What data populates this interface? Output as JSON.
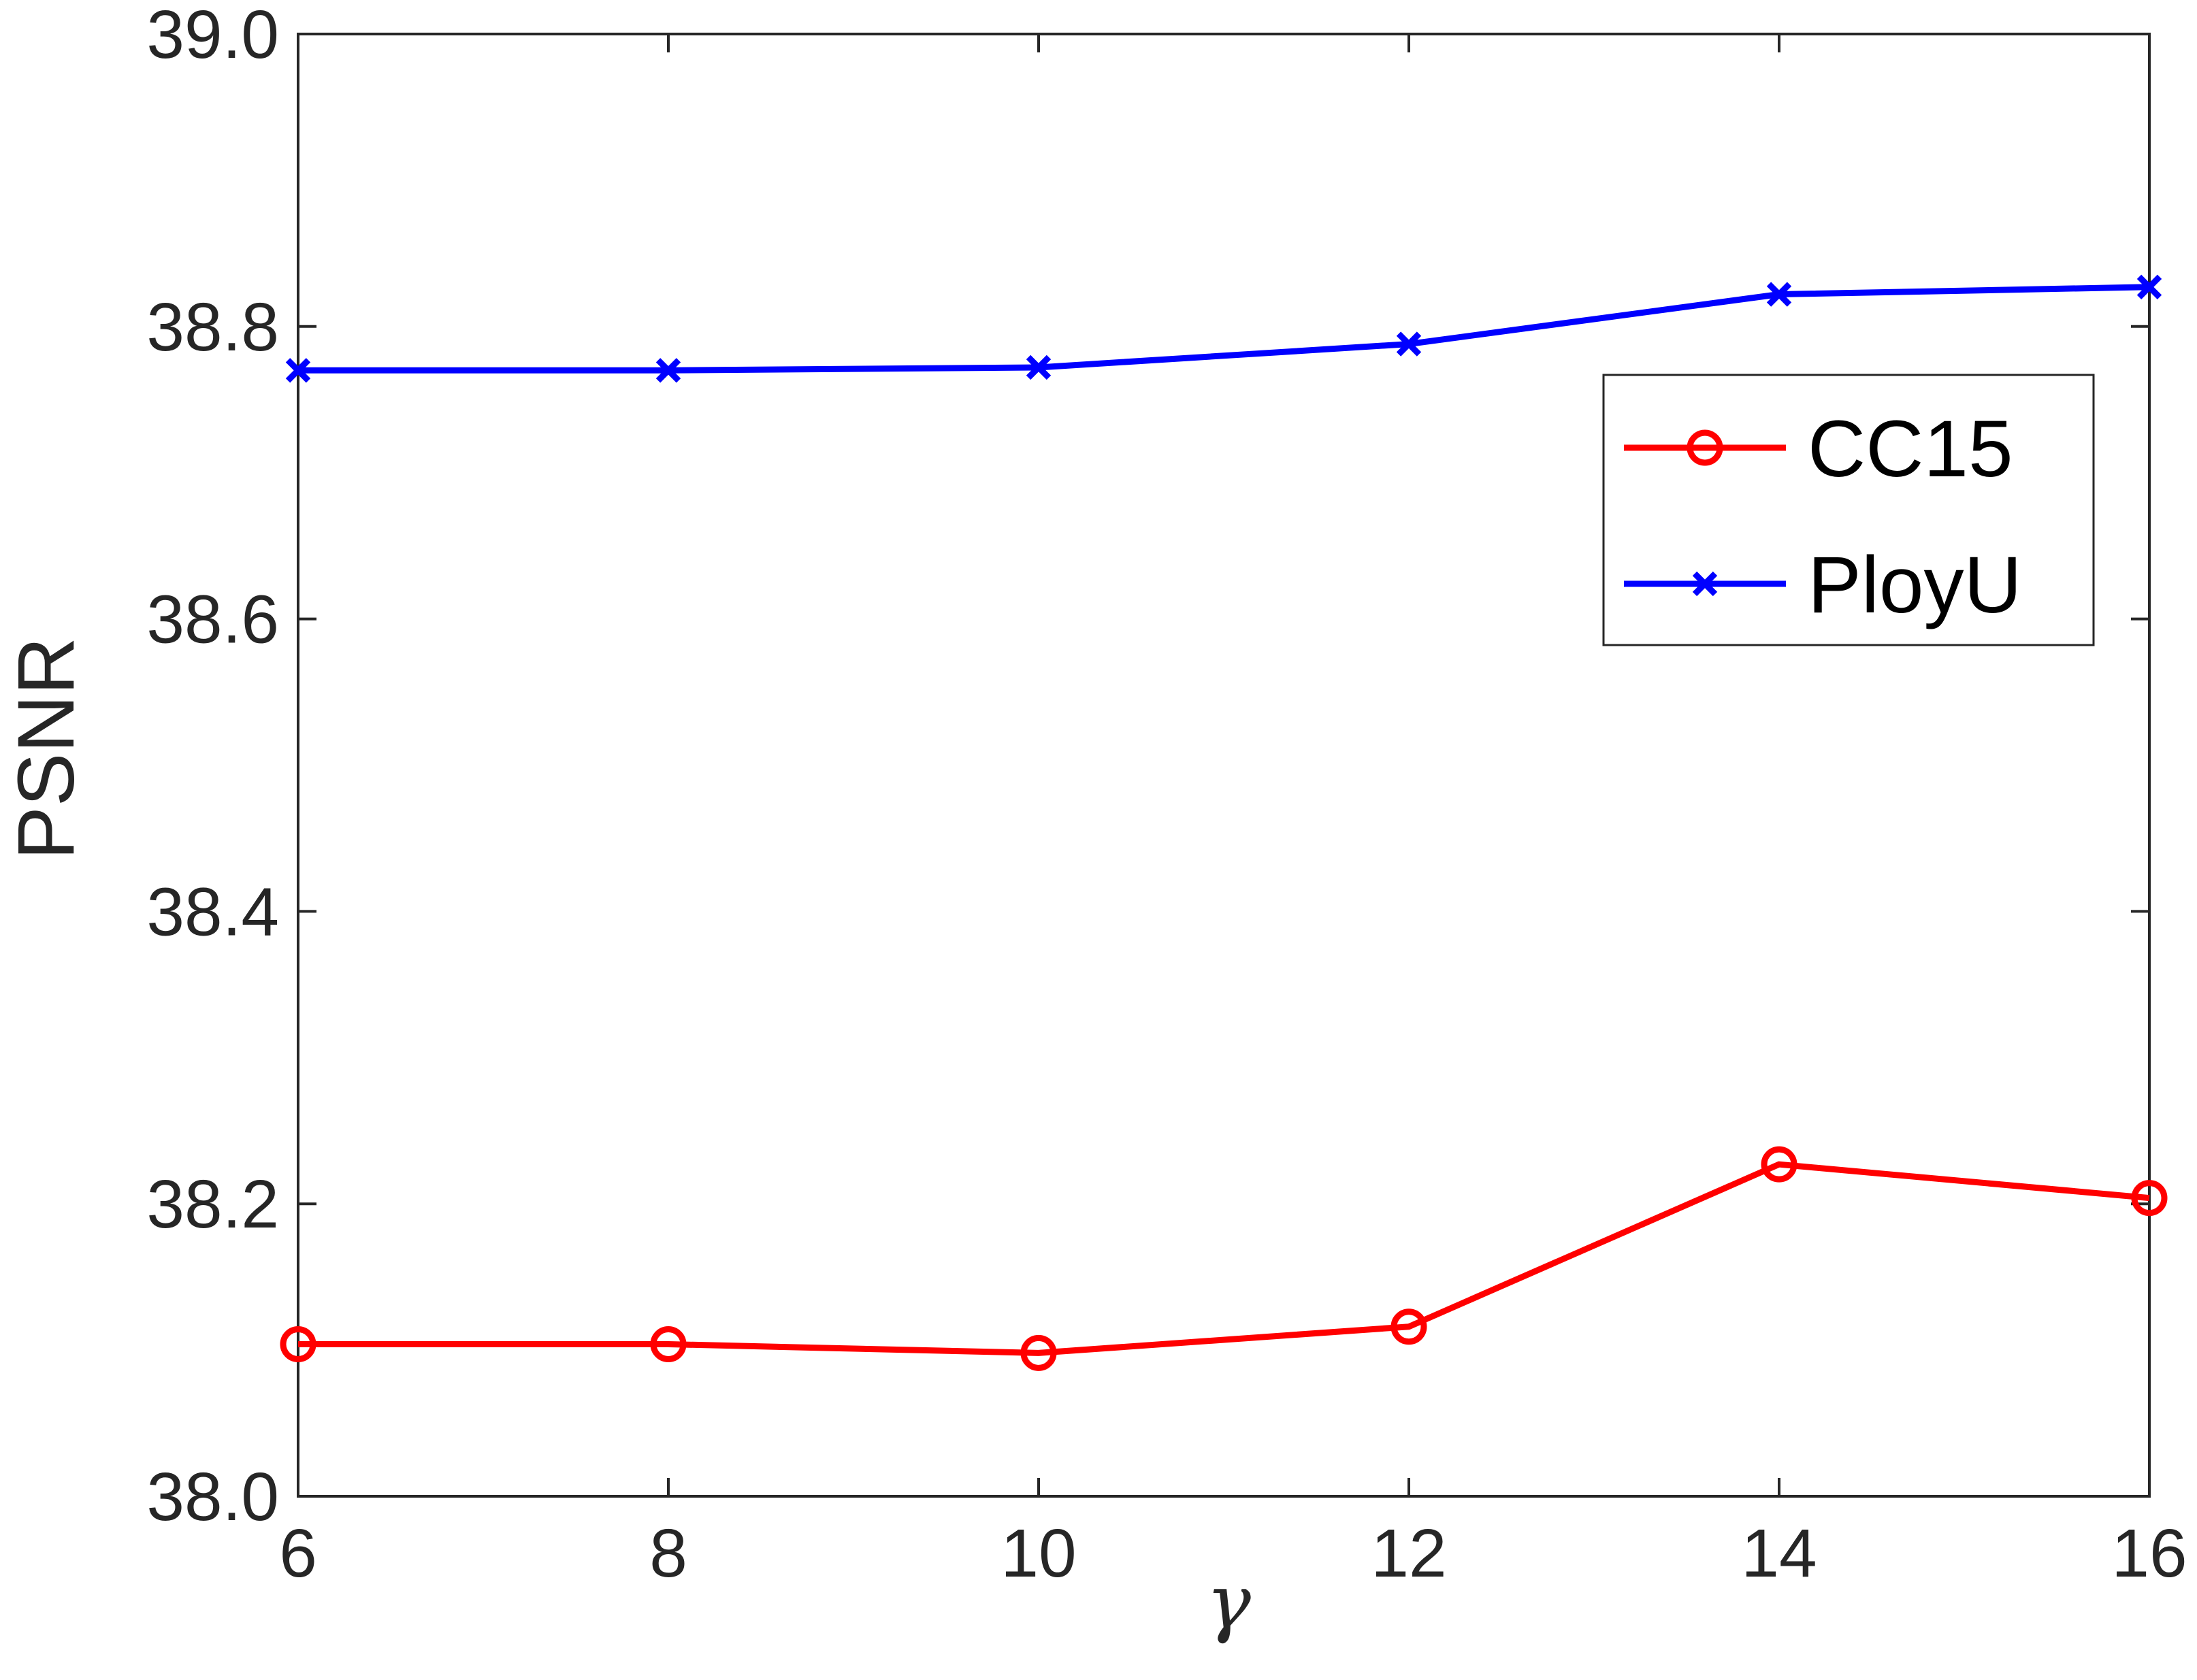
{
  "chart_data": {
    "type": "line",
    "title": "",
    "xlabel": "γ",
    "ylabel": "PSNR",
    "x": [
      6,
      8,
      10,
      12,
      14,
      16
    ],
    "xlim": [
      6,
      16
    ],
    "ylim": [
      38.0,
      39.0
    ],
    "xticks": [
      "6",
      "8",
      "10",
      "12",
      "14",
      "16"
    ],
    "yticks": [
      "38.0",
      "38.2",
      "38.4",
      "38.6",
      "38.8",
      "39.0"
    ],
    "grid": false,
    "legend_position": "top-right",
    "series": [
      {
        "name": "CC15",
        "color": "#ff0000",
        "marker": "circle",
        "values": [
          38.104,
          38.104,
          38.098,
          38.116,
          38.227,
          38.204
        ]
      },
      {
        "name": "PloyU",
        "color": "#0000ff",
        "marker": "x",
        "values": [
          38.77,
          38.77,
          38.772,
          38.788,
          38.822,
          38.827
        ]
      }
    ]
  }
}
